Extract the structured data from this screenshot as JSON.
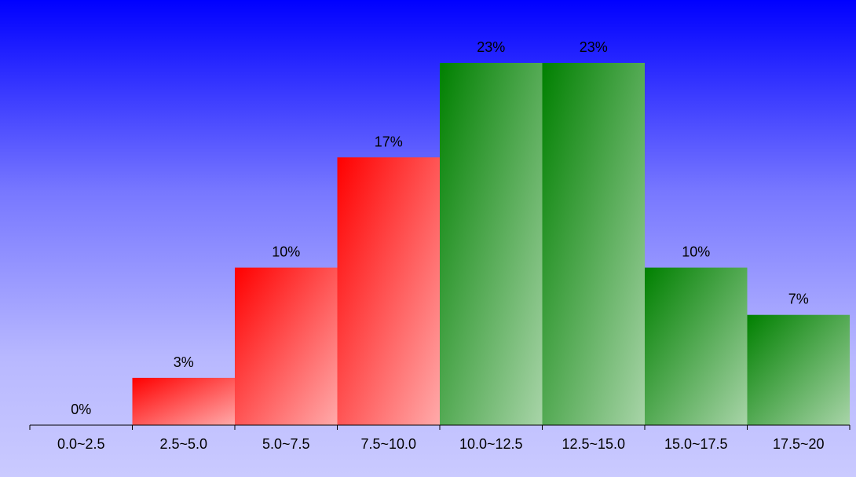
{
  "chart_data": {
    "type": "bar",
    "categories": [
      "0.0~2.5",
      "2.5~5.0",
      "5.0~7.5",
      "7.5~10.0",
      "10.0~12.5",
      "12.5~15.0",
      "15.0~17.5",
      "17.5~20"
    ],
    "values": [
      0,
      3,
      10,
      17,
      23,
      23,
      10,
      7
    ],
    "value_labels": [
      "0%",
      "3%",
      "10%",
      "17%",
      "23%",
      "23%",
      "10%",
      "7%"
    ],
    "bar_colors": [
      "#ff0000",
      "#ff0000",
      "#ff0000",
      "#ff0000",
      "#008000",
      "#008000",
      "#008000",
      "#008000"
    ],
    "ylim": [
      0,
      23
    ],
    "grid": false,
    "legend": "none"
  }
}
